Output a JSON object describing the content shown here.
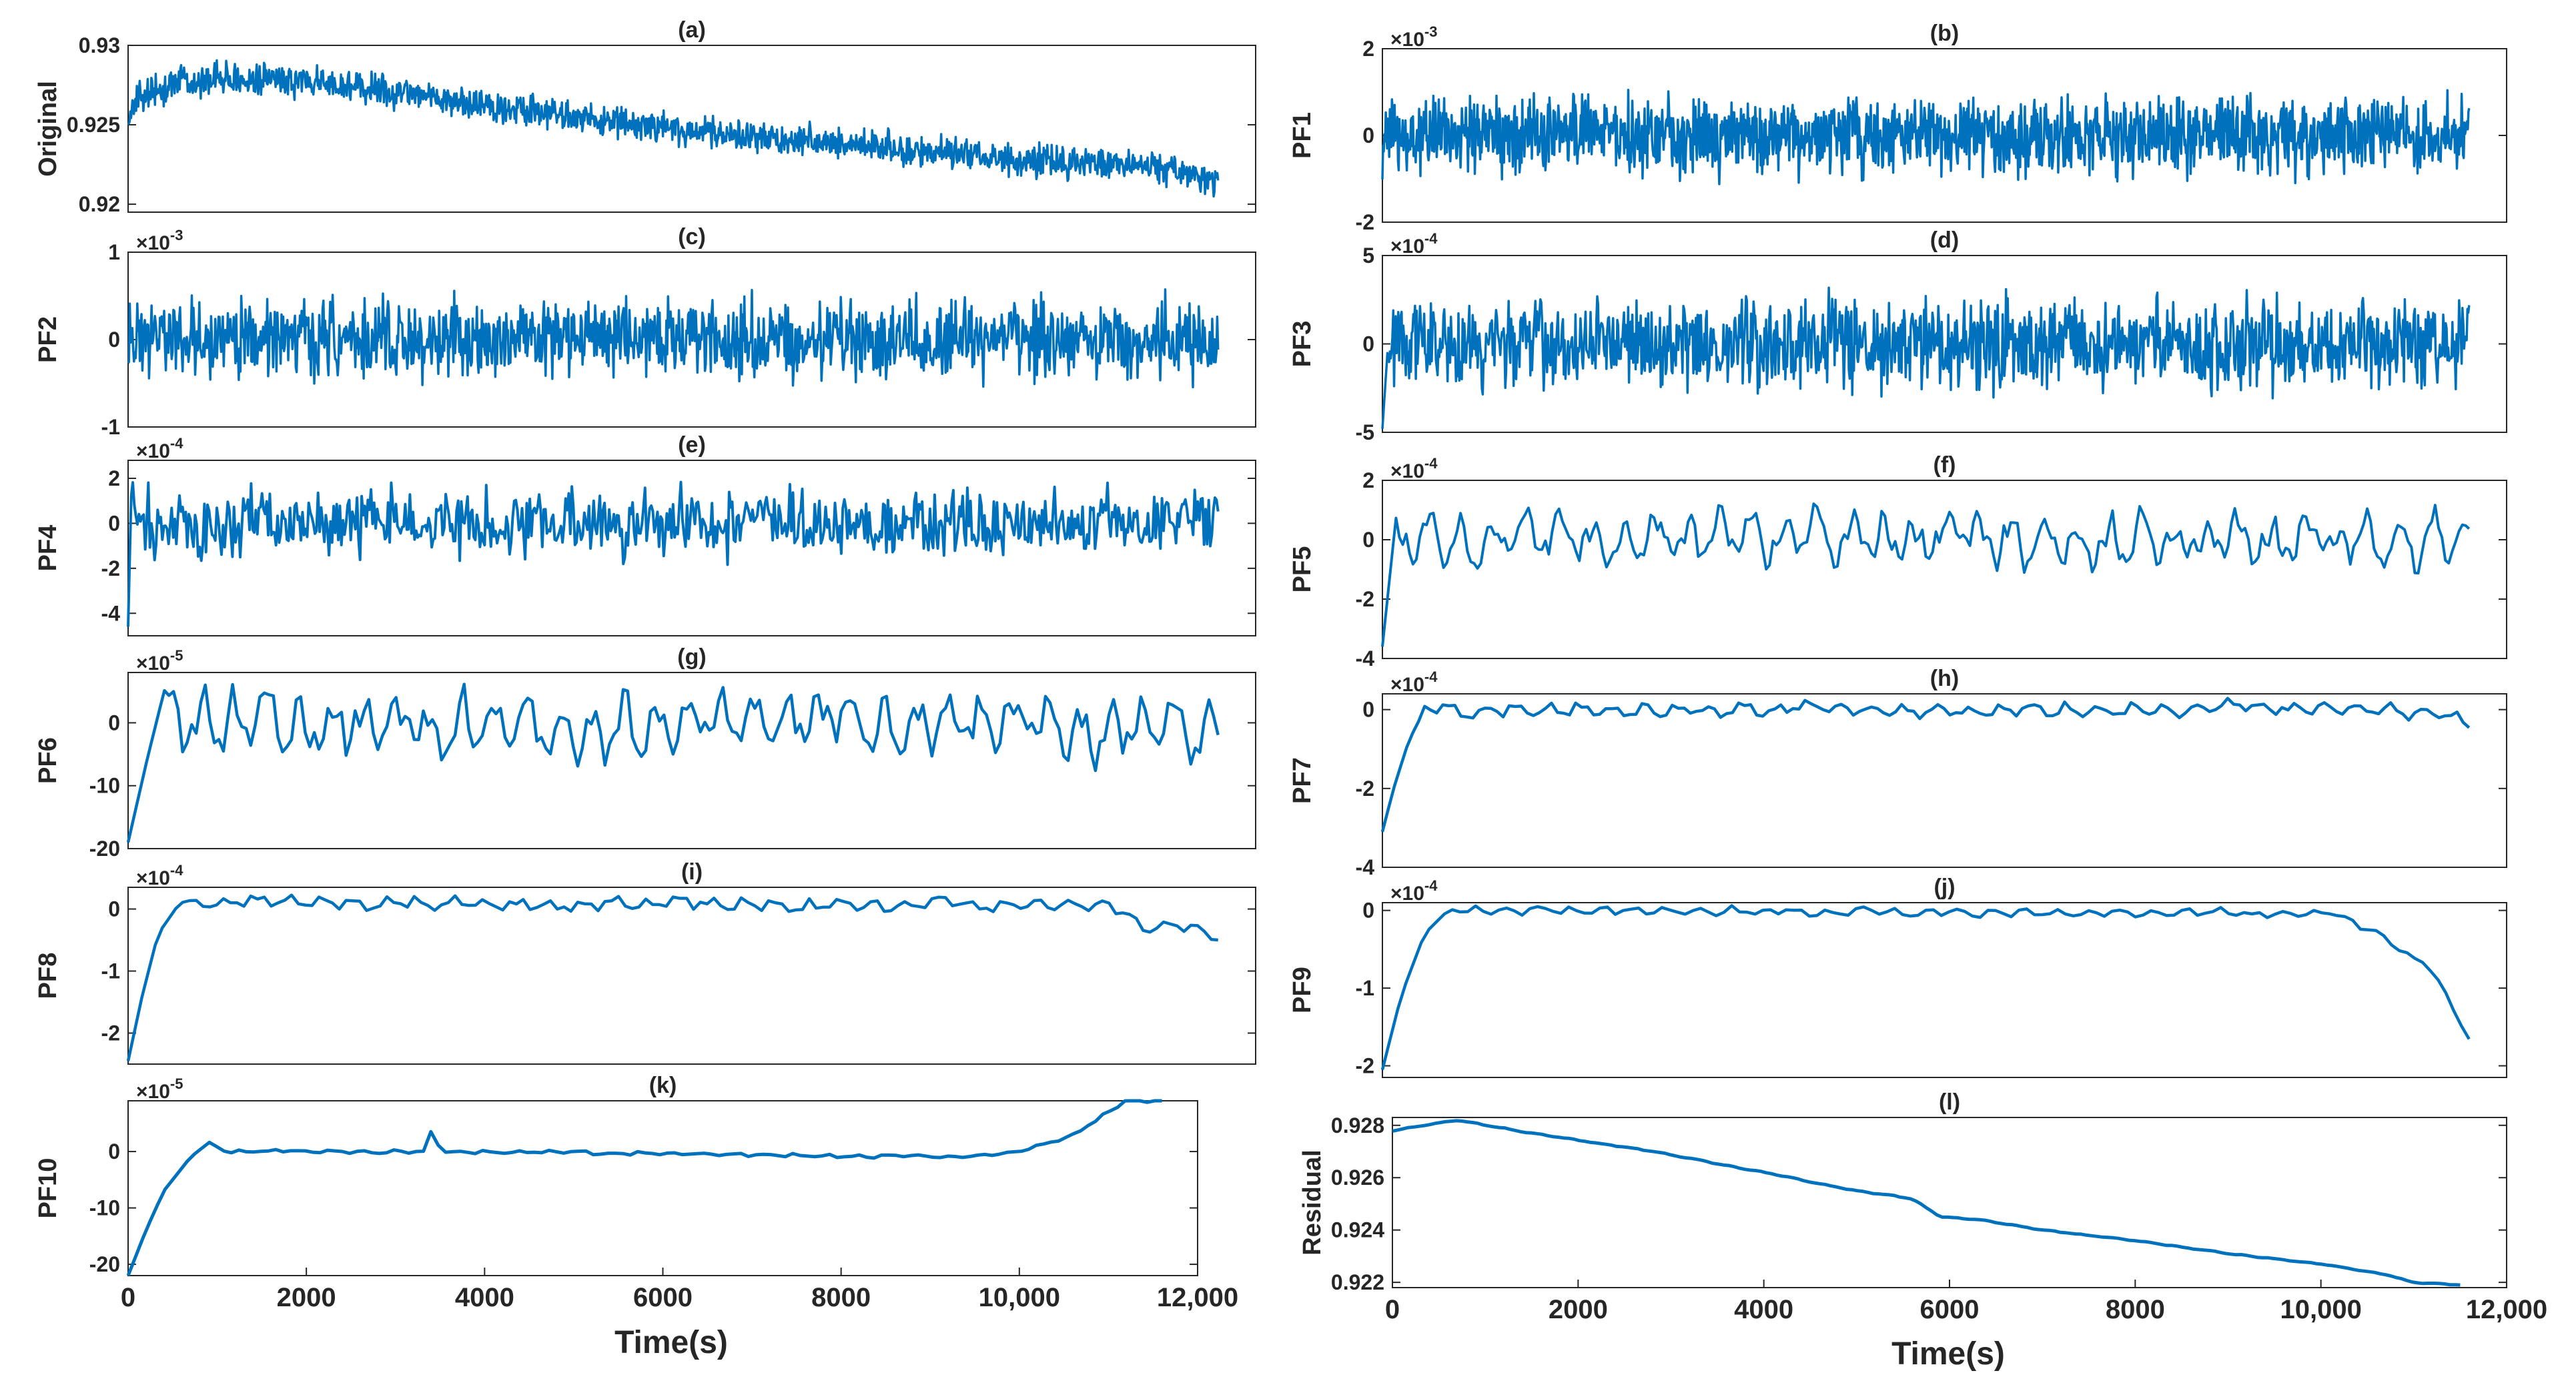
{
  "figure": {
    "xlabel": "Time(s)",
    "series_color": "#0072BD"
  },
  "chart_data": [
    {
      "id": "a",
      "type": "line",
      "title": "(a)",
      "ylabel": "Original",
      "exponent": "",
      "xlim": [
        0,
        12000
      ],
      "ylim": [
        0.9195,
        0.93
      ],
      "yticks": [
        {
          "v": 0.92,
          "t": "0.92"
        },
        {
          "v": 0.925,
          "t": "0.925"
        },
        {
          "v": 0.93,
          "t": "0.93"
        }
      ],
      "xticks": [],
      "xmax": 11600,
      "series": [
        {
          "name": "Original",
          "trend": [
            [
              0,
              0.9256
            ],
            [
              150,
              0.9268
            ],
            [
              600,
              0.9279
            ],
            [
              2000,
              0.9277
            ],
            [
              4000,
              0.9261
            ],
            [
              6000,
              0.9246
            ],
            [
              8000,
              0.9236
            ],
            [
              10000,
              0.9226
            ],
            [
              11000,
              0.9224
            ],
            [
              11600,
              0.9215
            ]
          ],
          "amplitude": 0.0013,
          "shape": "noise",
          "init": null,
          "start_offset": 0
        }
      ]
    },
    {
      "id": "b",
      "type": "line",
      "title": "(b)",
      "ylabel": "PF1",
      "exponent": "-3",
      "xlim": [
        0,
        12000
      ],
      "ylim": [
        -2,
        2
      ],
      "yticks": [
        {
          "v": -2,
          "t": "-2"
        },
        {
          "v": 0,
          "t": "0"
        },
        {
          "v": 2,
          "t": "2"
        }
      ],
      "xticks": [],
      "xmax": 11600,
      "series": [
        {
          "name": "PF1",
          "trend": [
            [
              0,
              0
            ],
            [
              11600,
              0
            ]
          ],
          "amplitude": 1.15,
          "shape": "noise",
          "init": null,
          "start_offset": 0
        }
      ]
    },
    {
      "id": "c",
      "type": "line",
      "title": "(c)",
      "ylabel": "PF2",
      "exponent": "-3",
      "xlim": [
        0,
        12000
      ],
      "ylim": [
        -1,
        1
      ],
      "yticks": [
        {
          "v": -1,
          "t": "-1"
        },
        {
          "v": 0,
          "t": "0"
        },
        {
          "v": 1,
          "t": "1"
        }
      ],
      "xticks": [],
      "xmax": 11600,
      "series": [
        {
          "name": "PF2",
          "trend": [
            [
              0,
              0
            ],
            [
              11600,
              0
            ]
          ],
          "amplitude": 0.58,
          "shape": "noise",
          "init": null,
          "start_offset": 0
        }
      ]
    },
    {
      "id": "d",
      "type": "line",
      "title": "(d)",
      "ylabel": "PF3",
      "exponent": "-4",
      "xlim": [
        0,
        12000
      ],
      "ylim": [
        -5,
        5
      ],
      "yticks": [
        {
          "v": -5,
          "t": "-5"
        },
        {
          "v": 0,
          "t": "0"
        },
        {
          "v": 5,
          "t": "5"
        }
      ],
      "xticks": [],
      "xmax": 11600,
      "series": [
        {
          "name": "PF3",
          "trend": [
            [
              0,
              0
            ],
            [
              11600,
              0
            ]
          ],
          "amplitude": 3.3,
          "shape": "noise",
          "init": [
            [
              0,
              -4.8
            ],
            [
              60,
              0
            ]
          ],
          "start_offset": 0
        }
      ]
    },
    {
      "id": "e",
      "type": "line",
      "title": "(e)",
      "ylabel": "PF4",
      "exponent": "-4",
      "xlim": [
        0,
        12000
      ],
      "ylim": [
        -5,
        2.8
      ],
      "yticks": [
        {
          "v": -4,
          "t": "-4"
        },
        {
          "v": -2,
          "t": "-2"
        },
        {
          "v": 0,
          "t": "0"
        },
        {
          "v": 2,
          "t": "2"
        }
      ],
      "xticks": [],
      "xmax": 11600,
      "series": [
        {
          "name": "PF4",
          "trend": [
            [
              0,
              0
            ],
            [
              11600,
              0
            ]
          ],
          "amplitude": 1.9,
          "shape": "noise",
          "init": [
            [
              0,
              -4.6
            ],
            [
              40,
              2.4
            ],
            [
              80,
              0
            ]
          ],
          "start_offset": 0
        }
      ]
    },
    {
      "id": "f",
      "type": "line",
      "title": "(f)",
      "ylabel": "PF5",
      "exponent": "-4",
      "xlim": [
        0,
        12000
      ],
      "ylim": [
        -4,
        2
      ],
      "yticks": [
        {
          "v": -4,
          "t": "-4"
        },
        {
          "v": -2,
          "t": "-2"
        },
        {
          "v": 0,
          "t": "0"
        },
        {
          "v": 2,
          "t": "2"
        }
      ],
      "xticks": [],
      "xmax": 11600,
      "series": [
        {
          "name": "PF5",
          "trend": [
            [
              0,
              0
            ],
            [
              11600,
              0
            ]
          ],
          "amplitude": 0.95,
          "shape": "wave",
          "init": [
            [
              0,
              -3.6
            ],
            [
              120,
              0
            ]
          ],
          "start_offset": 0
        }
      ]
    },
    {
      "id": "g",
      "type": "line",
      "title": "(g)",
      "ylabel": "PF6",
      "exponent": "-5",
      "xlim": [
        0,
        12000
      ],
      "ylim": [
        -20,
        8
      ],
      "yticks": [
        {
          "v": -20,
          "t": "-20"
        },
        {
          "v": -10,
          "t": "-10"
        },
        {
          "v": 0,
          "t": "0"
        }
      ],
      "xticks": [],
      "xmax": 11600,
      "series": [
        {
          "name": "PF6",
          "trend": [
            [
              0,
              0
            ],
            [
              11600,
              0
            ]
          ],
          "amplitude": 5.5,
          "shape": "wave",
          "init": [
            [
              0,
              -19
            ],
            [
              200,
              -6
            ],
            [
              350,
              3
            ]
          ],
          "start_offset": 0
        }
      ]
    },
    {
      "id": "h",
      "type": "line",
      "title": "(h)",
      "ylabel": "PF7",
      "exponent": "-4",
      "xlim": [
        0,
        12000
      ],
      "ylim": [
        -4,
        0.4
      ],
      "yticks": [
        {
          "v": -4,
          "t": "-4"
        },
        {
          "v": -2,
          "t": "-2"
        },
        {
          "v": 0,
          "t": "0"
        }
      ],
      "xticks": [],
      "xmax": 11600,
      "series": [
        {
          "name": "PF7",
          "trend": [
            [
              0,
              -3.1
            ],
            [
              120,
              -2.0
            ],
            [
              280,
              -0.8
            ],
            [
              450,
              0
            ],
            [
              11200,
              0
            ],
            [
              11600,
              -0.5
            ]
          ],
          "amplitude": 0.2,
          "shape": "wave",
          "init": null,
          "start_offset": 450
        }
      ]
    },
    {
      "id": "i",
      "type": "line",
      "title": "(i)",
      "ylabel": "PF8",
      "exponent": "-4",
      "xlim": [
        0,
        12000
      ],
      "ylim": [
        -2.5,
        0.35
      ],
      "yticks": [
        {
          "v": -2,
          "t": "-2"
        },
        {
          "v": -1,
          "t": "-1"
        },
        {
          "v": 0,
          "t": "0"
        }
      ],
      "xticks": [],
      "xmax": 11600,
      "series": [
        {
          "name": "PF8",
          "trend": [
            [
              0,
              -2.45
            ],
            [
              150,
              -1.4
            ],
            [
              320,
              -0.4
            ],
            [
              550,
              0.1
            ],
            [
              10500,
              0.05
            ],
            [
              10850,
              -0.3
            ],
            [
              11200,
              -0.3
            ],
            [
              11600,
              -0.45
            ]
          ],
          "amplitude": 0.12,
          "shape": "wave",
          "init": null,
          "start_offset": 550
        }
      ]
    },
    {
      "id": "j",
      "type": "line",
      "title": "(j)",
      "ylabel": "PF9",
      "exponent": "-4",
      "xlim": [
        0,
        12000
      ],
      "ylim": [
        -2.15,
        0.1
      ],
      "yticks": [
        {
          "v": -2,
          "t": "-2"
        },
        {
          "v": -1,
          "t": "-1"
        },
        {
          "v": 0,
          "t": "0"
        }
      ],
      "xticks": [],
      "xmax": 11600,
      "series": [
        {
          "name": "PF9",
          "trend": [
            [
              0,
              -2.05
            ],
            [
              200,
              -1.1
            ],
            [
              450,
              -0.3
            ],
            [
              700,
              0
            ],
            [
              10200,
              -0.05
            ],
            [
              10600,
              -0.25
            ],
            [
              10900,
              -0.55
            ],
            [
              11200,
              -0.75
            ],
            [
              11600,
              -1.6
            ]
          ],
          "amplitude": 0.06,
          "shape": "wave",
          "init": null,
          "start_offset": 700
        }
      ]
    },
    {
      "id": "k",
      "type": "line",
      "title": "(k)",
      "ylabel": "PF10",
      "exponent": "-5",
      "xlim": [
        0,
        12000
      ],
      "ylim": [
        -22,
        9
      ],
      "yticks": [
        {
          "v": -20,
          "t": "-20"
        },
        {
          "v": -10,
          "t": "-10"
        },
        {
          "v": 0,
          "t": "0"
        }
      ],
      "xticks": [
        {
          "v": 0,
          "t": "0"
        },
        {
          "v": 2000,
          "t": "2000"
        },
        {
          "v": 4000,
          "t": "4000"
        },
        {
          "v": 6000,
          "t": "6000"
        },
        {
          "v": 8000,
          "t": "8000"
        },
        {
          "v": 10000,
          "t": "10,000"
        },
        {
          "v": 12000,
          "t": "12,000"
        }
      ],
      "xmax": 11600,
      "series": [
        {
          "name": "PF10",
          "trend": [
            [
              0,
              -22
            ],
            [
              200,
              -14
            ],
            [
              400,
              -7
            ],
            [
              700,
              -1
            ],
            [
              900,
              1.5
            ],
            [
              1100,
              0
            ],
            [
              3350,
              0
            ],
            [
              3420,
              5
            ],
            [
              3500,
              0
            ],
            [
              9500,
              -1
            ],
            [
              10000,
              0
            ],
            [
              10600,
              3
            ],
            [
              11000,
              7
            ],
            [
              11200,
              9
            ],
            [
              11600,
              9
            ]
          ],
          "amplitude": 0.35,
          "shape": "wave",
          "init": null,
          "start_offset": 900
        }
      ]
    },
    {
      "id": "l",
      "type": "line",
      "title": "(l)",
      "ylabel": "Residual",
      "exponent": "",
      "xlim": [
        0,
        12000
      ],
      "ylim": [
        0.9218,
        0.9283
      ],
      "yticks": [
        {
          "v": 0.922,
          "t": "0.922"
        },
        {
          "v": 0.924,
          "t": "0.924"
        },
        {
          "v": 0.926,
          "t": "0.926"
        },
        {
          "v": 0.928,
          "t": "0.928"
        }
      ],
      "xticks": [
        {
          "v": 0,
          "t": "0"
        },
        {
          "v": 2000,
          "t": "2000"
        },
        {
          "v": 4000,
          "t": "4000"
        },
        {
          "v": 6000,
          "t": "6000"
        },
        {
          "v": 8000,
          "t": "8000"
        },
        {
          "v": 10000,
          "t": "10,000"
        },
        {
          "v": 12000,
          "t": "12,000"
        }
      ],
      "xmax": 11500,
      "series": [
        {
          "name": "Residual",
          "trend": [
            [
              0,
              0.9278
            ],
            [
              700,
              0.9282
            ],
            [
              1500,
              0.9277
            ],
            [
              2800,
              0.927
            ],
            [
              4000,
              0.9262
            ],
            [
              5000,
              0.9255
            ],
            [
              5600,
              0.9252
            ],
            [
              5900,
              0.9245
            ],
            [
              6300,
              0.9244
            ],
            [
              7000,
              0.924
            ],
            [
              8000,
              0.9236
            ],
            [
              9000,
              0.9231
            ],
            [
              10000,
              0.9227
            ],
            [
              10700,
              0.9223
            ],
            [
              11000,
              0.922
            ],
            [
              11500,
              0.9219
            ]
          ],
          "amplitude": 2e-05,
          "shape": "wave",
          "init": null,
          "start_offset": 0
        }
      ]
    }
  ]
}
